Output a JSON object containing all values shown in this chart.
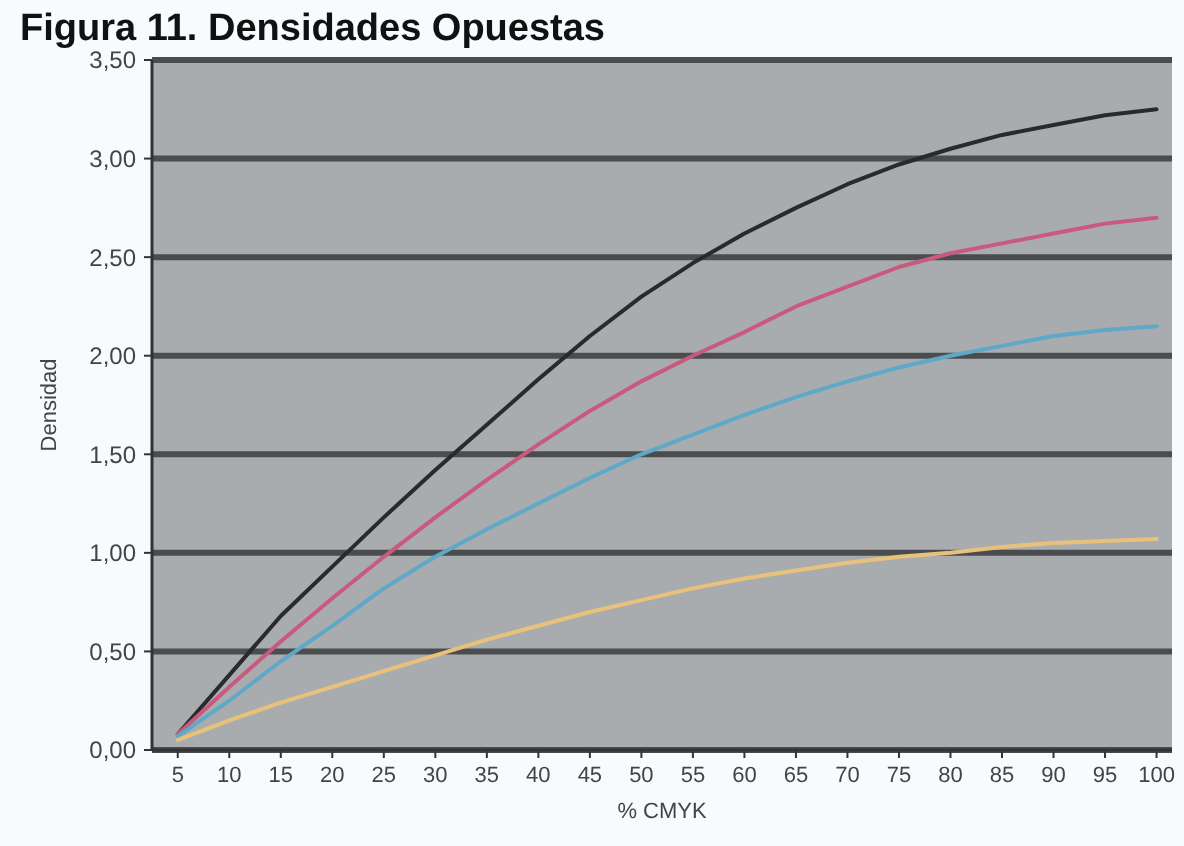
{
  "chart_data": {
    "type": "line",
    "title": "Figura 11. Densidades Opuestas",
    "xlabel": "% CMYK",
    "ylabel": "Densidad",
    "x": [
      5,
      10,
      15,
      20,
      25,
      30,
      35,
      40,
      45,
      50,
      55,
      60,
      65,
      70,
      75,
      80,
      85,
      90,
      95,
      100
    ],
    "xlim": [
      2.5,
      101.5
    ],
    "xticks": [
      5,
      10,
      15,
      20,
      25,
      30,
      35,
      40,
      45,
      50,
      55,
      60,
      65,
      70,
      75,
      80,
      85,
      90,
      95,
      100
    ],
    "ylim": [
      0,
      3.5
    ],
    "yticks": [
      {
        "value": 0,
        "label": "0,00"
      },
      {
        "value": 0.5,
        "label": "0,50"
      },
      {
        "value": 1,
        "label": "1,00"
      },
      {
        "value": 1.5,
        "label": "1,50"
      },
      {
        "value": 2,
        "label": "2,00"
      },
      {
        "value": 2.5,
        "label": "2,50"
      },
      {
        "value": 3,
        "label": "3,00"
      },
      {
        "value": 3.5,
        "label": "3,50"
      }
    ],
    "grid": "y",
    "marker": "none",
    "line_style": "solid",
    "series": [
      {
        "color": "#2a2a2e",
        "values": [
          0.08,
          0.38,
          0.68,
          0.93,
          1.18,
          1.42,
          1.65,
          1.88,
          2.1,
          2.3,
          2.47,
          2.62,
          2.75,
          2.87,
          2.97,
          3.05,
          3.12,
          3.17,
          3.22,
          3.25
        ]
      },
      {
        "color": "#c95a7e",
        "values": [
          0.08,
          0.32,
          0.55,
          0.77,
          0.98,
          1.18,
          1.37,
          1.55,
          1.72,
          1.87,
          2.0,
          2.12,
          2.25,
          2.35,
          2.45,
          2.52,
          2.57,
          2.62,
          2.67,
          2.7
        ]
      },
      {
        "color": "#5fa8c8",
        "values": [
          0.07,
          0.25,
          0.45,
          0.63,
          0.82,
          0.98,
          1.12,
          1.25,
          1.38,
          1.5,
          1.6,
          1.7,
          1.79,
          1.87,
          1.94,
          2.0,
          2.05,
          2.1,
          2.13,
          2.15
        ]
      },
      {
        "color": "#e8c27a",
        "values": [
          0.05,
          0.15,
          0.24,
          0.32,
          0.4,
          0.48,
          0.56,
          0.63,
          0.7,
          0.76,
          0.82,
          0.87,
          0.91,
          0.95,
          0.98,
          1.0,
          1.03,
          1.05,
          1.06,
          1.07
        ]
      }
    ]
  }
}
